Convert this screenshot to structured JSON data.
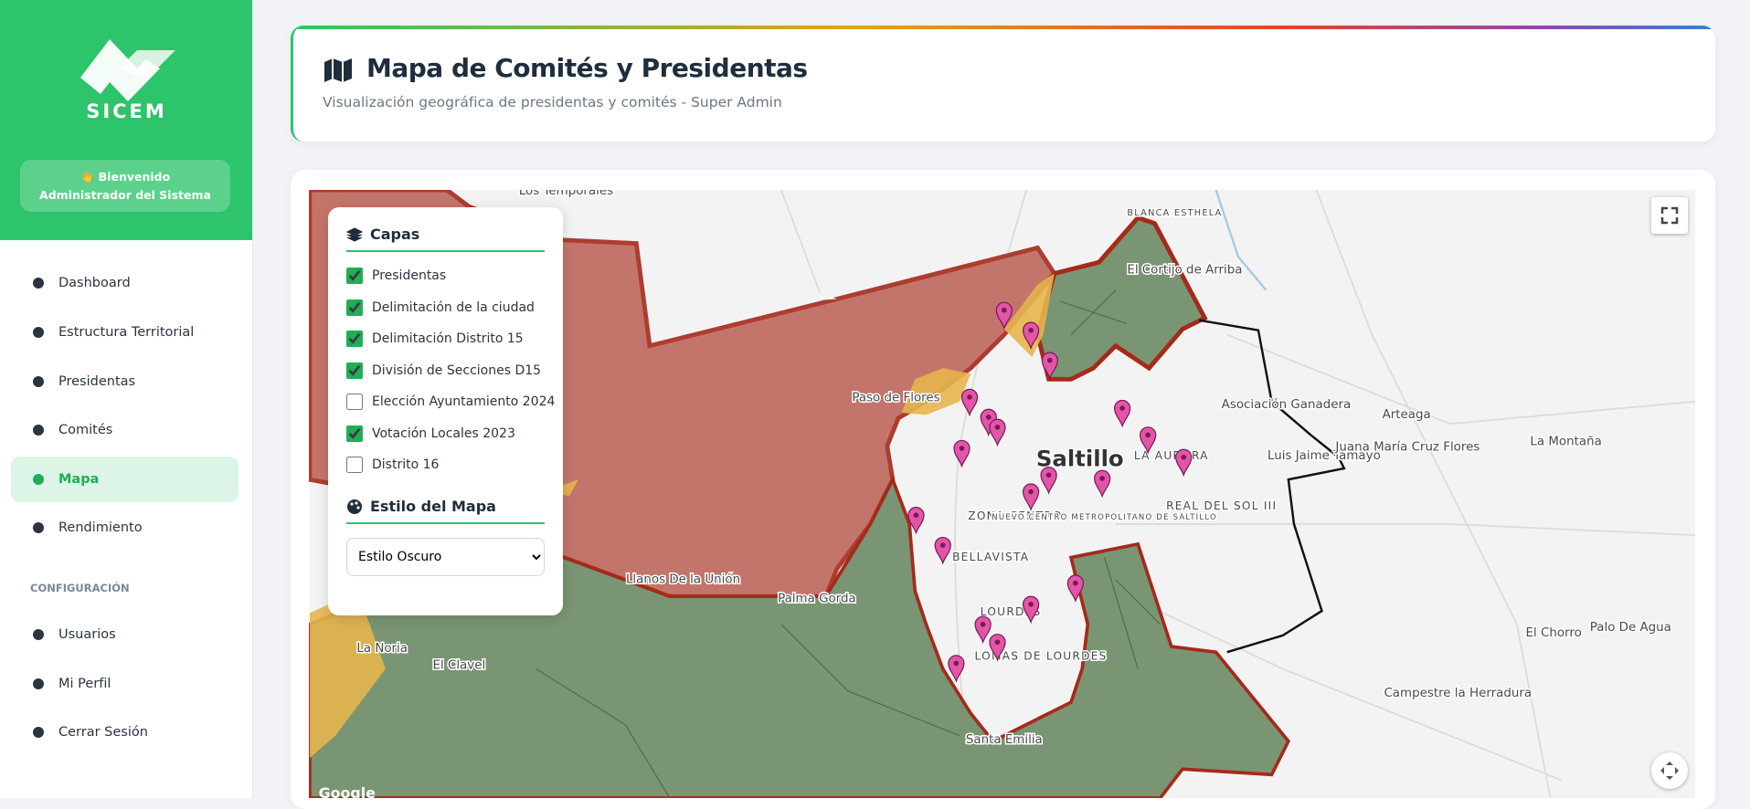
{
  "sidebar": {
    "brand": "SICEM",
    "welcome": "👋 Bienvenido Administrador del Sistema",
    "menu": [
      "Dashboard",
      "Estructura Territorial",
      "Presidentas",
      "Comités",
      "Mapa",
      "Rendimiento"
    ],
    "active": "Mapa",
    "config_heading": "CONFIGURACIÓN",
    "config_menu": [
      "Usuarios",
      "Mi Perfil",
      "Cerrar Sesión"
    ]
  },
  "header": {
    "title": "Mapa de Comités y Presidentas",
    "subtitle": "Visualización geográfica de presidentas y comités - Super Admin"
  },
  "layers_panel": {
    "title": "Capas",
    "layers": [
      {
        "label": "Presidentas",
        "checked": true
      },
      {
        "label": "Delimitación de la ciudad",
        "checked": true
      },
      {
        "label": "Delimitación Distrito 15",
        "checked": true
      },
      {
        "label": "División de Secciones D15",
        "checked": true
      },
      {
        "label": "Elección Ayuntamiento 2024",
        "checked": false
      },
      {
        "label": "Votación Locales 2023",
        "checked": true
      },
      {
        "label": "Distrito 16",
        "checked": false
      }
    ],
    "style_title": "Estilo del Mapa",
    "style_selected": "Estilo Oscuro"
  },
  "map": {
    "labels": [
      "Los Temporales",
      "Paso de Flores",
      "Saltillo",
      "ZONA CENTRO",
      "BELLAVISTA",
      "LOURDES",
      "LOMAS DE LOURDES",
      "LA AURORA",
      "REAL DEL SOL III",
      "Llanos De la Unión",
      "Palma Gorda",
      "El Clavel",
      "La Noria",
      "El Cortijo de Arriba",
      "Asociación Ganadera",
      "Arteaga",
      "Luis Jaime Tamayo",
      "Juana María Cruz Flores",
      "La Montaña",
      "El Chorro",
      "Palo De Agua",
      "Campestre la Herradura",
      "Santa Emilia",
      "BLANCA ESTHELA",
      "NUEVO CENTRO METROPOLITANO DE SALTILLO"
    ],
    "attribution": "Google"
  }
}
